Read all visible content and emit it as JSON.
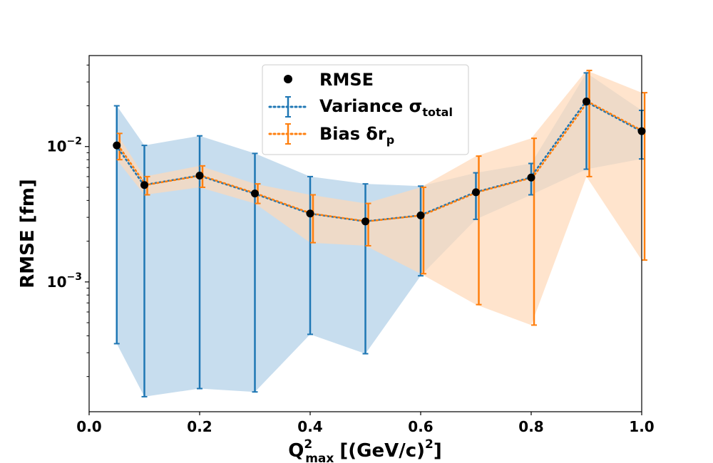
{
  "chart_data": {
    "type": "line",
    "xlabel": "Q",
    "xlabel_superscript": "2",
    "xlabel_subscript": "max",
    "xlabel_units": "[(GeV/c)",
    "xlabel_units_superscript": "2",
    "xlabel_units_close": "]",
    "ylabel": "RMSE [fm]",
    "y_scale": "log",
    "xlim": [
      0.0,
      1.0
    ],
    "ylim": [
      0.00011,
      0.047
    ],
    "x_ticks": [
      {
        "value": 0.0,
        "label": "0.0"
      },
      {
        "value": 0.2,
        "label": "0.2"
      },
      {
        "value": 0.4,
        "label": "0.4"
      },
      {
        "value": 0.6,
        "label": "0.6"
      },
      {
        "value": 0.8,
        "label": "0.8"
      },
      {
        "value": 1.0,
        "label": "1.0"
      }
    ],
    "y_ticks": [
      {
        "value": 0.001,
        "base": "10",
        "exp": "−3"
      },
      {
        "value": 0.01,
        "base": "10",
        "exp": "−2"
      }
    ],
    "grid": false,
    "legend_position": "top-center",
    "colors": {
      "rmse": "#000000",
      "variance": "#1f77b4",
      "bias": "#ff7f0e",
      "variance_band": "#c4dbed",
      "bias_band": "#ffd9b8"
    },
    "legend": {
      "rmse_label": "RMSE",
      "variance_label": "Variance σ",
      "variance_sub": "total",
      "bias_label": "Bias δr",
      "bias_sub": "p"
    },
    "x": [
      0.05,
      0.1,
      0.2,
      0.3,
      0.4,
      0.5,
      0.6,
      0.7,
      0.8,
      0.9,
      1.0
    ],
    "rmse": [
      0.0102,
      0.0052,
      0.0061,
      0.0045,
      0.0032,
      0.0028,
      0.0031,
      0.0046,
      0.0059,
      0.0215,
      0.013
    ],
    "series": [
      {
        "name": "Variance σtotal",
        "values": [
          0.0102,
          0.0052,
          0.0061,
          0.0045,
          0.0032,
          0.0028,
          0.0031,
          0.0046,
          0.0059,
          0.0215,
          0.013
        ],
        "lower": [
          0.00035,
          0.000142,
          0.000163,
          0.000154,
          0.00041,
          0.000295,
          0.00111,
          0.0029,
          0.0044,
          0.0068,
          0.0081
        ],
        "upper": [
          0.02,
          0.0102,
          0.012,
          0.0089,
          0.006,
          0.0053,
          0.0051,
          0.0064,
          0.0075,
          0.035,
          0.0185
        ]
      },
      {
        "name": "Bias δrp",
        "values": [
          0.0102,
          0.0052,
          0.0061,
          0.0045,
          0.0032,
          0.0028,
          0.0031,
          0.0046,
          0.0059,
          0.0215,
          0.013
        ],
        "lower": [
          0.008,
          0.0044,
          0.005,
          0.0038,
          0.00195,
          0.00185,
          0.00115,
          0.00068,
          0.00048,
          0.006,
          0.00145
        ],
        "upper": [
          0.0125,
          0.006,
          0.0072,
          0.0053,
          0.0044,
          0.0038,
          0.005,
          0.0085,
          0.0115,
          0.0365,
          0.025
        ]
      }
    ]
  }
}
